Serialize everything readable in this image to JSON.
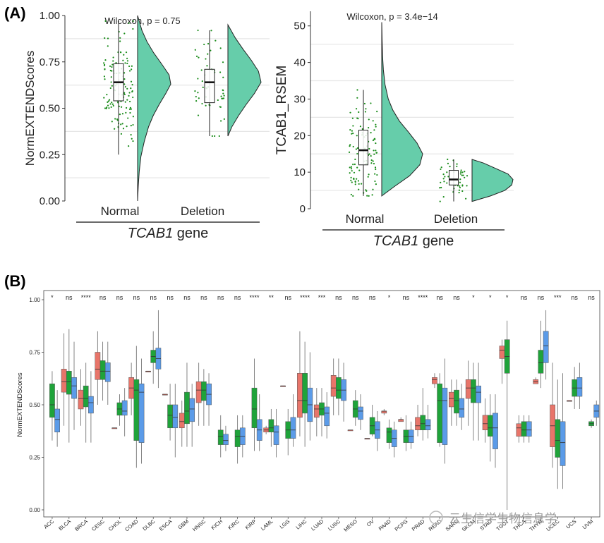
{
  "panel_labels": [
    "(A)",
    "(B)"
  ],
  "watermark": "云生信学生物信息学",
  "colors": {
    "violin": "#66CDAA",
    "jitter": "#1a8c1a",
    "grid": "#e6e6e6",
    "red": "#E8756A",
    "green": "#1FA33A",
    "blue": "#5B9BE8"
  },
  "chart_data": [
    {
      "type": "raincloud",
      "panel": "A-left",
      "annotation": "Wilcoxon, p = 0.75",
      "ylabel": "NormEXTENDScores",
      "xtitle_italic": "TCAB1",
      "xtitle_rest": " gene",
      "categories": [
        "Normal",
        "Deletion"
      ],
      "ylim": [
        0,
        1.0
      ],
      "yticks": [
        0.0,
        0.25,
        0.5,
        0.75,
        1.0
      ],
      "ytick_labels": [
        "0.00",
        "0.25",
        "0.50",
        "0.75",
        "1.00"
      ],
      "boxes": [
        {
          "min": 0.25,
          "q1": 0.54,
          "median": 0.64,
          "q3": 0.74,
          "max": 0.97
        },
        {
          "min": 0.35,
          "q1": 0.53,
          "median": 0.64,
          "q3": 0.71,
          "max": 0.92
        }
      ],
      "n_points": [
        130,
        55
      ],
      "violins": [
        {
          "y": [
            0.0,
            0.08,
            0.16,
            0.24,
            0.32,
            0.4,
            0.46,
            0.52,
            0.58,
            0.63,
            0.68,
            0.74,
            0.8,
            0.86,
            0.92,
            1.0
          ],
          "d": [
            0.0,
            0.02,
            0.05,
            0.1,
            0.2,
            0.33,
            0.47,
            0.65,
            0.85,
            1.0,
            0.95,
            0.72,
            0.48,
            0.28,
            0.13,
            0.0
          ]
        },
        {
          "y": [
            0.35,
            0.4,
            0.46,
            0.52,
            0.58,
            0.64,
            0.7,
            0.76,
            0.82,
            0.88,
            0.95
          ],
          "d": [
            0.0,
            0.12,
            0.32,
            0.55,
            0.8,
            1.0,
            0.92,
            0.7,
            0.45,
            0.22,
            0.0
          ]
        }
      ]
    },
    {
      "type": "raincloud",
      "panel": "A-right",
      "annotation": "Wilcoxon, p = 3.4e−14",
      "ylabel": "TCAB1_RSEM",
      "xtitle_italic": "TCAB1",
      "xtitle_rest": " gene",
      "categories": [
        "Normal",
        "Deletion"
      ],
      "ylim": [
        0,
        54
      ],
      "yticks": [
        0,
        10,
        20,
        30,
        40,
        50
      ],
      "ytick_labels": [
        "0",
        "10",
        "20",
        "30",
        "40",
        "50"
      ],
      "boxes": [
        {
          "min": 3.5,
          "q1": 12,
          "median": 16,
          "q3": 21.5,
          "max": 32.5
        },
        {
          "min": 2,
          "q1": 6.5,
          "median": 8,
          "q3": 10.5,
          "max": 13.5
        }
      ],
      "n_points": [
        110,
        45
      ],
      "violins": [
        {
          "y": [
            3.5,
            6,
            9,
            12,
            15,
            18,
            21,
            24,
            27,
            30,
            34,
            38,
            42,
            46,
            51
          ],
          "d": [
            0.0,
            0.3,
            0.68,
            0.93,
            1.0,
            0.86,
            0.65,
            0.43,
            0.27,
            0.16,
            0.08,
            0.04,
            0.02,
            0.01,
            0.0
          ]
        },
        {
          "y": [
            2,
            3.5,
            5,
            6.5,
            8,
            9.5,
            11,
            12.5,
            13.5
          ],
          "d": [
            0.0,
            0.45,
            0.8,
            0.97,
            1.0,
            0.88,
            0.58,
            0.28,
            0.0
          ]
        }
      ]
    },
    {
      "type": "box",
      "panel": "B",
      "ylabel": "NormEXTENDScores",
      "ylim": [
        0,
        1.0
      ],
      "yticks": [
        0.0,
        0.25,
        0.5,
        0.75,
        1.0
      ],
      "ytick_labels": [
        "0.00",
        "0.25",
        "0.50",
        "0.75",
        "1.00"
      ],
      "categories": [
        "ACC",
        "BLCA",
        "BRCA",
        "CESC",
        "CHOL",
        "COAD",
        "DLBC",
        "ESCA",
        "GBM",
        "HNSC",
        "KICH",
        "KIRC",
        "KIRP",
        "LAML",
        "LGG",
        "LIHC",
        "LUAD",
        "LUSC",
        "MESO",
        "OV",
        "PAAD",
        "PCPG",
        "PRAD",
        "READ",
        "SARC",
        "SKCM",
        "STAD",
        "TGCT",
        "THCA",
        "THYM",
        "UCEC",
        "UCS",
        "UVM"
      ],
      "significance": [
        "*",
        "ns",
        "****",
        "ns",
        "ns",
        "ns",
        "ns",
        "ns",
        "ns",
        "ns",
        "ns",
        "ns",
        "****",
        "**",
        "ns",
        "****",
        "***",
        "ns",
        "ns",
        "ns",
        "*",
        "ns",
        "****",
        "ns",
        "ns",
        "*",
        "*",
        "*",
        "ns",
        "ns",
        "***",
        "ns",
        "ns"
      ],
      "groups": [
        [
          null,
          [
            0.33,
            0.44,
            0.5,
            0.6,
            0.66
          ],
          [
            0.3,
            0.37,
            0.43,
            0.48,
            0.57
          ]
        ],
        [
          [
            0.4,
            0.56,
            0.61,
            0.67,
            0.84
          ],
          [
            0.32,
            0.55,
            0.61,
            0.66,
            0.86
          ],
          [
            0.38,
            0.53,
            0.59,
            0.63,
            0.8
          ]
        ],
        [
          [
            0.4,
            0.48,
            0.53,
            0.57,
            0.67
          ],
          [
            0.32,
            0.49,
            0.53,
            0.59,
            0.7
          ],
          [
            0.32,
            0.46,
            0.51,
            0.54,
            0.66
          ]
        ],
        [
          [
            0.5,
            0.62,
            0.67,
            0.75,
            0.85
          ],
          [
            0.52,
            0.62,
            0.66,
            0.71,
            0.8
          ],
          [
            0.5,
            0.61,
            0.66,
            0.7,
            0.8
          ]
        ],
        [
          [
            0.39,
            0.39,
            0.39,
            0.39,
            0.39
          ],
          [
            0.4,
            0.45,
            0.48,
            0.51,
            0.55
          ],
          [
            0.35,
            0.45,
            0.47,
            0.52,
            0.58
          ]
        ],
        [
          [
            0.45,
            0.53,
            0.58,
            0.63,
            0.7
          ],
          [
            0.2,
            0.33,
            0.57,
            0.62,
            0.78
          ],
          [
            0.22,
            0.32,
            0.56,
            0.6,
            0.72
          ]
        ],
        [
          [
            0.66,
            0.66,
            0.66,
            0.66,
            0.66
          ],
          [
            0.6,
            0.7,
            0.73,
            0.76,
            0.85
          ],
          [
            0.58,
            0.67,
            0.72,
            0.77,
            0.95
          ]
        ],
        [
          [
            0.55,
            0.55,
            0.55,
            0.55,
            0.55
          ],
          [
            0.33,
            0.39,
            0.45,
            0.5,
            0.6
          ],
          [
            0.25,
            0.39,
            0.44,
            0.5,
            0.6
          ]
        ],
        [
          [
            0.3,
            0.39,
            0.42,
            0.46,
            0.52
          ],
          [
            0.3,
            0.41,
            0.47,
            0.56,
            0.7
          ],
          [
            0.3,
            0.42,
            0.48,
            0.53,
            0.6
          ]
        ],
        [
          [
            0.4,
            0.51,
            0.57,
            0.61,
            0.7
          ],
          [
            0.4,
            0.52,
            0.57,
            0.61,
            0.67
          ],
          [
            0.4,
            0.5,
            0.55,
            0.6,
            0.65
          ]
        ],
        [
          null,
          [
            0.25,
            0.31,
            0.35,
            0.38,
            0.45
          ],
          [
            0.28,
            0.31,
            0.33,
            0.36,
            0.4
          ]
        ],
        [
          null,
          [
            0.22,
            0.3,
            0.35,
            0.38,
            0.45
          ],
          [
            0.25,
            0.31,
            0.35,
            0.39,
            0.45
          ]
        ],
        [
          null,
          [
            0.28,
            0.39,
            0.48,
            0.58,
            0.72
          ],
          [
            0.28,
            0.33,
            0.38,
            0.43,
            0.55
          ]
        ],
        [
          [
            0.36,
            0.37,
            0.38,
            0.39,
            0.4
          ],
          [
            0.3,
            0.37,
            0.39,
            0.43,
            0.48
          ],
          [
            0.25,
            0.31,
            0.37,
            0.4,
            0.48
          ]
        ],
        [
          [
            0.59,
            0.59,
            0.59,
            0.59,
            0.59
          ],
          [
            0.26,
            0.34,
            0.38,
            0.42,
            0.48
          ],
          [
            0.3,
            0.34,
            0.38,
            0.44,
            0.55
          ]
        ],
        [
          [
            0.35,
            0.44,
            0.52,
            0.65,
            0.85
          ],
          [
            0.3,
            0.46,
            0.52,
            0.65,
            0.8
          ],
          [
            0.33,
            0.42,
            0.5,
            0.58,
            0.75
          ]
        ],
        [
          [
            0.35,
            0.44,
            0.48,
            0.5,
            0.58
          ],
          [
            0.35,
            0.45,
            0.48,
            0.51,
            0.58
          ],
          [
            0.34,
            0.4,
            0.46,
            0.49,
            0.56
          ]
        ],
        [
          [
            0.45,
            0.54,
            0.58,
            0.64,
            0.72
          ],
          [
            0.45,
            0.53,
            0.57,
            0.63,
            0.72
          ],
          [
            0.42,
            0.52,
            0.57,
            0.62,
            0.7
          ]
        ],
        [
          [
            0.38,
            0.38,
            0.38,
            0.38,
            0.38
          ],
          [
            0.4,
            0.44,
            0.48,
            0.52,
            0.57
          ],
          [
            0.38,
            0.43,
            0.47,
            0.49,
            0.55
          ]
        ],
        [
          [
            0.34,
            0.34,
            0.34,
            0.34,
            0.34
          ],
          [
            0.35,
            0.36,
            0.4,
            0.44,
            0.5
          ],
          [
            0.28,
            0.34,
            0.38,
            0.42,
            0.47
          ]
        ],
        [
          [
            0.45,
            0.46,
            0.47,
            0.47,
            0.48
          ],
          [
            0.29,
            0.32,
            0.37,
            0.39,
            0.43
          ],
          [
            0.25,
            0.3,
            0.34,
            0.38,
            0.42
          ]
        ],
        [
          [
            0.42,
            0.42,
            0.43,
            0.43,
            0.44
          ],
          [
            0.28,
            0.32,
            0.35,
            0.38,
            0.45
          ],
          [
            0.29,
            0.32,
            0.35,
            0.38,
            0.42
          ]
        ],
        [
          [
            0.35,
            0.38,
            0.4,
            0.44,
            0.5
          ],
          [
            0.33,
            0.38,
            0.41,
            0.45,
            0.58
          ],
          [
            0.34,
            0.38,
            0.4,
            0.43,
            0.5
          ]
        ],
        [
          [
            0.58,
            0.6,
            0.62,
            0.63,
            0.65
          ],
          [
            0.3,
            0.32,
            0.52,
            0.6,
            0.65
          ],
          [
            0.22,
            0.31,
            0.52,
            0.58,
            0.72
          ]
        ],
        [
          [
            0.4,
            0.49,
            0.53,
            0.56,
            0.62
          ],
          [
            0.4,
            0.46,
            0.52,
            0.57,
            0.62
          ],
          [
            0.38,
            0.44,
            0.48,
            0.53,
            0.6
          ]
        ],
        [
          [
            0.4,
            0.53,
            0.58,
            0.62,
            0.71
          ],
          [
            0.33,
            0.51,
            0.58,
            0.62,
            0.7
          ],
          [
            0.33,
            0.51,
            0.56,
            0.59,
            0.7
          ]
        ],
        [
          [
            0.32,
            0.38,
            0.41,
            0.45,
            0.53
          ],
          [
            0.23,
            0.35,
            0.39,
            0.45,
            0.55
          ],
          [
            0.2,
            0.29,
            0.39,
            0.46,
            0.55
          ]
        ],
        [
          [
            0.6,
            0.72,
            0.76,
            0.78,
            0.81
          ],
          [
            0.0,
            0.65,
            0.73,
            0.81,
            0.9
          ],
          [
            0.0,
            0.0,
            0.0,
            0.0,
            0.0
          ]
        ],
        [
          [
            0.32,
            0.35,
            0.39,
            0.41,
            0.45
          ],
          [
            0.32,
            0.35,
            0.38,
            0.42,
            0.45
          ],
          [
            0.32,
            0.35,
            0.38,
            0.42,
            0.45
          ]
        ],
        [
          [
            0.6,
            0.6,
            0.61,
            0.62,
            0.63
          ],
          [
            0.58,
            0.65,
            0.7,
            0.76,
            0.9
          ],
          [
            0.62,
            0.7,
            0.78,
            0.85,
            0.95
          ]
        ],
        [
          [
            0.2,
            0.3,
            0.4,
            0.5,
            0.7
          ],
          [
            0.1,
            0.25,
            0.33,
            0.43,
            0.62
          ],
          [
            0.1,
            0.21,
            0.32,
            0.42,
            0.65
          ]
        ],
        [
          [
            0.52,
            0.52,
            0.52,
            0.52,
            0.52
          ],
          [
            0.48,
            0.54,
            0.58,
            0.62,
            0.68
          ],
          [
            0.48,
            0.54,
            0.58,
            0.63,
            0.7
          ]
        ],
        [
          null,
          [
            0.39,
            0.4,
            0.41,
            0.42,
            0.43
          ],
          [
            0.4,
            0.44,
            0.47,
            0.5,
            0.52
          ]
        ]
      ]
    }
  ]
}
